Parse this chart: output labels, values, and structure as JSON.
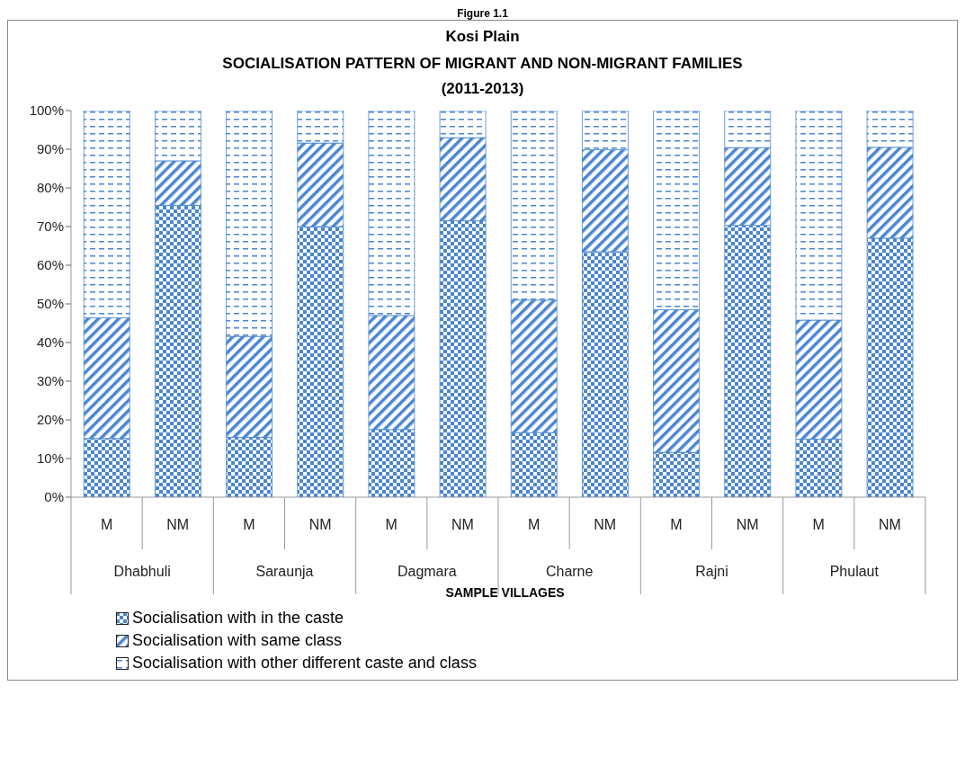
{
  "chart_data": {
    "type": "bar",
    "title": "Kosi Plain",
    "subtitle": "SOCIALISATION PATTERN OF MIGRANT AND NON-MIGRANT FAMILIES (2011-2013)",
    "xlabel": "SAMPLE VILLAGES",
    "annotations": [
      "Figure 1.1",
      "Dhabhuli",
      "Saraunja",
      "Dagmara",
      "Charne",
      "Rajni",
      "Phulaut"
    ],
    "categories": [
      "M",
      "NM",
      "M",
      "NM",
      "M",
      "NM",
      "M",
      "NM",
      "M",
      "NM",
      "M",
      "NM"
    ],
    "stacked": true,
    "series": [
      {
        "name": "Socialisation with in the caste",
        "color": "#4a86d0",
        "values": [
          15.2,
          75.5,
          15.5,
          70,
          17.5,
          71.5,
          16.7,
          63.5,
          11.6,
          70.3,
          15,
          67
        ]
      },
      {
        "name": "Socialisation with same class",
        "color": "#4a86d0",
        "values": [
          31.2,
          11.5,
          26.1,
          21.6,
          29.5,
          21.5,
          34.3,
          26.4,
          36.9,
          20.1,
          30.8,
          23.5
        ]
      },
      {
        "name": "Socialisation with other different caste and class",
        "color": "#4a86d0",
        "values": [
          53.6,
          13,
          58.4,
          8.4,
          53,
          7,
          49,
          10.1,
          51.5,
          9.6,
          54.2,
          9.5
        ]
      }
    ],
    "ylim": [
      0,
      100
    ],
    "yticks": [
      {
        "value": 0,
        "label": "0%"
      },
      {
        "value": 10,
        "label": "10%"
      },
      {
        "value": 20,
        "label": "20%"
      },
      {
        "value": 30,
        "label": "30%"
      },
      {
        "value": 40,
        "label": "40%"
      },
      {
        "value": 50,
        "label": "50%"
      },
      {
        "value": 60,
        "label": "60%"
      },
      {
        "value": 70,
        "label": "70%"
      },
      {
        "value": 80,
        "label": "80%"
      },
      {
        "value": 90,
        "label": "90%"
      },
      {
        "value": 100,
        "label": "100%"
      }
    ],
    "grid": false,
    "legend": "bottom"
  }
}
